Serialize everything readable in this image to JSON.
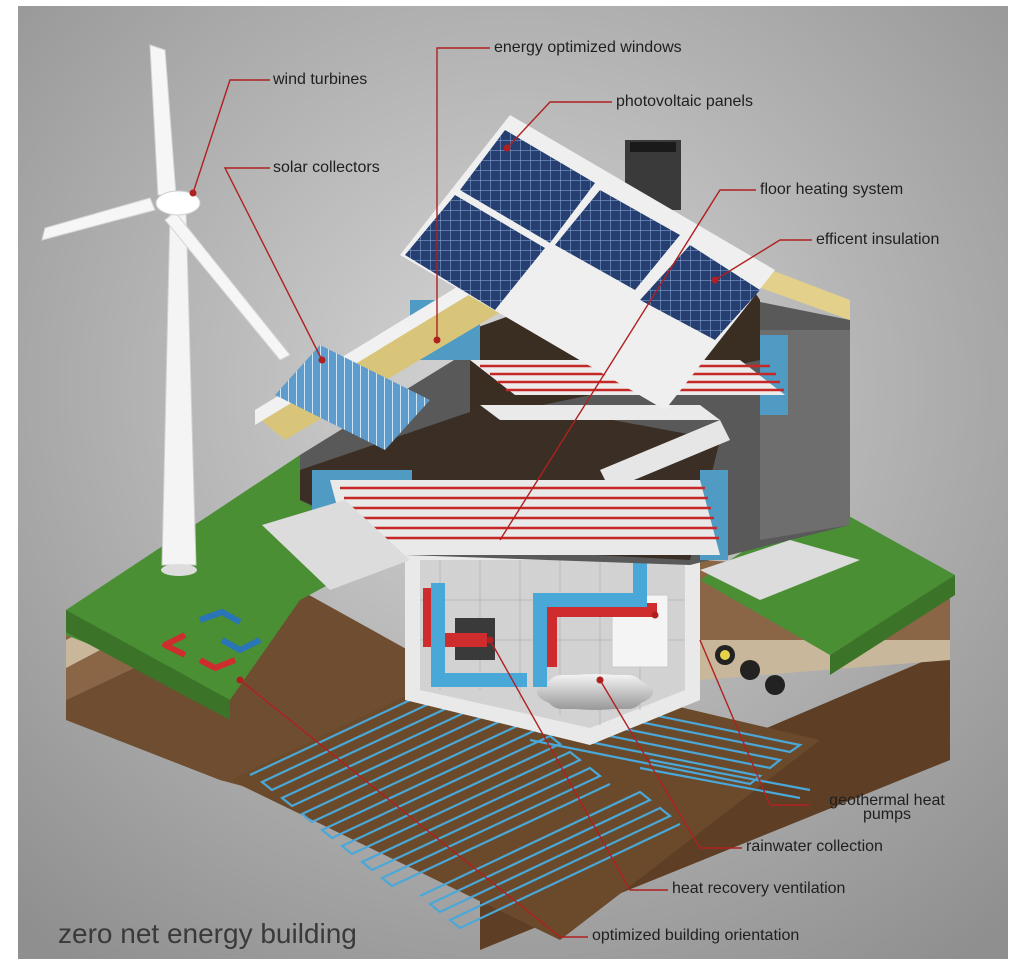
{
  "title": "zero net energy building",
  "labels": {
    "wind_turbines": "wind turbines",
    "solar_collectors": "solar collectors",
    "energy_windows": "energy optimized windows",
    "photovoltaic": "photovoltaic panels",
    "floor_heating": "floor heating system",
    "insulation": "efficent  insulation",
    "geothermal": "geothermal heat pumps",
    "rainwater": "rainwater collection",
    "heat_recovery": "heat recovery ventilation",
    "orientation": "optimized building orientation"
  },
  "colors": {
    "background": "#9c9c9c",
    "grass": "#4a8f34",
    "soil": "#7d5a3a",
    "pipe_blue": "#4aa8d8",
    "pipe_red": "#c62828",
    "leader": "#b02020",
    "panel": "#2c4a80",
    "insulation": "#e8d58a"
  }
}
